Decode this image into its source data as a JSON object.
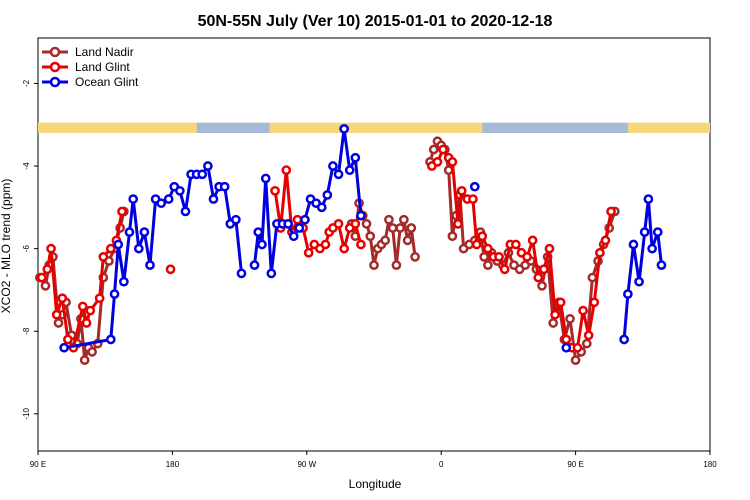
{
  "chart_data": {
    "type": "line",
    "title": "50N-55N July (Ver 10)   2015-01-01 to 2020-12-18",
    "xlabel": "Longitude",
    "ylabel": "XCO2 - MLO trend (ppm)",
    "xlim": [
      -90,
      270
    ],
    "ylim": [
      -10.9,
      -0.9
    ],
    "x_ticks": [
      {
        "value": -90,
        "label": "90 E"
      },
      {
        "value": -18,
        "label": "180"
      },
      {
        "value": 54,
        "label": "90 W"
      },
      {
        "value": 126,
        "label": "0"
      },
      {
        "value": 198,
        "label": "90 E"
      },
      {
        "value": 270,
        "label": "180"
      }
    ],
    "y_ticks": [
      {
        "value": -2,
        "label": "-2"
      },
      {
        "value": -4,
        "label": "-4"
      },
      {
        "value": -6,
        "label": "-6"
      },
      {
        "value": -8,
        "label": "-8"
      },
      {
        "value": -10,
        "label": "-10"
      }
    ],
    "legend_position": "top-left",
    "grid": false,
    "land_mask_band": {
      "y_range": [
        -3.2,
        -2.95
      ],
      "land_color": "#f8d77a",
      "ocean_color": "#a5bad8"
    },
    "series": [
      {
        "name": "Land Nadir",
        "color": "#a52a2a",
        "segments": [
          [
            [
              -89,
              -6.7
            ],
            [
              -86,
              -6.9
            ],
            [
              -84,
              -6.4
            ],
            [
              -82,
              -6.2
            ],
            [
              -79,
              -7.8
            ],
            [
              -77,
              -7.6
            ],
            [
              -75,
              -7.3
            ],
            [
              -72,
              -8.1
            ],
            [
              -69,
              -8.3
            ],
            [
              -67,
              -7.7
            ],
            [
              -65,
              -8.7
            ],
            [
              -63,
              -8.4
            ],
            [
              -61,
              -8.5
            ],
            [
              -58,
              -8.3
            ],
            [
              -55,
              -6.7
            ],
            [
              -52,
              -6.3
            ],
            [
              -49,
              -6.0
            ],
            [
              -46,
              -5.5
            ],
            [
              -44,
              -5.1
            ]
          ],
          [
            [
              78,
              -5.4
            ],
            [
              80,
              -5.7
            ],
            [
              82,
              -4.9
            ],
            [
              84,
              -5.2
            ],
            [
              86,
              -5.4
            ],
            [
              88,
              -5.7
            ],
            [
              90,
              -6.4
            ],
            [
              92,
              -6.0
            ],
            [
              94,
              -5.9
            ],
            [
              96,
              -5.8
            ],
            [
              98,
              -5.3
            ],
            [
              100,
              -5.5
            ],
            [
              102,
              -6.4
            ],
            [
              104,
              -5.5
            ],
            [
              106,
              -5.3
            ],
            [
              108,
              -5.8
            ],
            [
              110,
              -5.5
            ],
            [
              112,
              -6.2
            ]
          ],
          [
            [
              120,
              -3.9
            ],
            [
              122,
              -3.6
            ],
            [
              124,
              -3.4
            ],
            [
              126,
              -3.5
            ],
            [
              128,
              -3.6
            ],
            [
              130,
              -4.1
            ],
            [
              132,
              -5.7
            ],
            [
              134,
              -5.2
            ],
            [
              136,
              -4.7
            ],
            [
              138,
              -6.0
            ],
            [
              141,
              -5.9
            ],
            [
              144,
              -5.8
            ],
            [
              147,
              -5.6
            ],
            [
              149,
              -6.2
            ],
            [
              151,
              -6.4
            ],
            [
              153,
              -6.1
            ],
            [
              156,
              -6.3
            ],
            [
              159,
              -6.4
            ],
            [
              162,
              -6.1
            ],
            [
              165,
              -6.4
            ],
            [
              168,
              -6.5
            ],
            [
              171,
              -6.4
            ],
            [
              174,
              -6.3
            ],
            [
              177,
              -6.5
            ],
            [
              180,
              -6.9
            ],
            [
              183,
              -6.2
            ],
            [
              186,
              -7.8
            ],
            [
              189,
              -7.3
            ],
            [
              192,
              -8.2
            ],
            [
              195,
              -7.7
            ],
            [
              198,
              -8.7
            ],
            [
              201,
              -8.5
            ],
            [
              204,
              -8.3
            ],
            [
              207,
              -6.7
            ],
            [
              210,
              -6.3
            ],
            [
              213,
              -5.9
            ],
            [
              216,
              -5.5
            ],
            [
              219,
              -5.1
            ]
          ]
        ]
      },
      {
        "name": "Land Glint",
        "color": "#e80000",
        "segments": [
          [
            [
              -88,
              -6.7
            ],
            [
              -85,
              -6.5
            ],
            [
              -83,
              -6.0
            ],
            [
              -80,
              -7.6
            ],
            [
              -77,
              -7.2
            ],
            [
              -74,
              -8.2
            ],
            [
              -71,
              -8.4
            ],
            [
              -66,
              -7.4
            ],
            [
              -64,
              -7.8
            ],
            [
              -62,
              -7.5
            ],
            [
              -57,
              -7.2
            ],
            [
              -55,
              -6.2
            ],
            [
              -51,
              -6.0
            ],
            [
              -48,
              -5.8
            ],
            [
              -45,
              -5.1
            ]
          ],
          [
            [
              -19,
              -6.5
            ]
          ],
          [
            [
              37,
              -4.6
            ],
            [
              40,
              -5.5
            ],
            [
              43,
              -4.1
            ],
            [
              46,
              -5.6
            ],
            [
              49,
              -5.3
            ],
            [
              52,
              -5.5
            ],
            [
              55,
              -6.1
            ],
            [
              58,
              -5.9
            ],
            [
              61,
              -6.0
            ],
            [
              64,
              -5.9
            ],
            [
              66,
              -5.6
            ],
            [
              68,
              -5.5
            ],
            [
              71,
              -5.4
            ],
            [
              74,
              -6.0
            ],
            [
              77,
              -5.5
            ],
            [
              80,
              -5.4
            ],
            [
              83,
              -5.9
            ]
          ],
          [
            [
              121,
              -4.0
            ],
            [
              124,
              -3.9
            ],
            [
              127,
              -3.6
            ],
            [
              130,
              -3.8
            ],
            [
              132,
              -3.9
            ],
            [
              135,
              -5.4
            ],
            [
              137,
              -4.6
            ],
            [
              140,
              -4.8
            ],
            [
              143,
              -4.8
            ],
            [
              145,
              -5.9
            ],
            [
              148,
              -5.7
            ],
            [
              151,
              -6.0
            ],
            [
              154,
              -6.2
            ],
            [
              157,
              -6.2
            ],
            [
              160,
              -6.5
            ],
            [
              163,
              -5.9
            ],
            [
              166,
              -5.9
            ],
            [
              169,
              -6.1
            ],
            [
              172,
              -6.2
            ],
            [
              175,
              -5.8
            ],
            [
              178,
              -6.7
            ],
            [
              181,
              -6.5
            ],
            [
              184,
              -6.0
            ],
            [
              187,
              -7.6
            ],
            [
              190,
              -7.3
            ],
            [
              193,
              -8.2
            ],
            [
              196,
              -8.4
            ],
            [
              199,
              -8.4
            ],
            [
              202,
              -7.5
            ],
            [
              205,
              -8.1
            ],
            [
              208,
              -7.3
            ],
            [
              211,
              -6.1
            ],
            [
              214,
              -5.8
            ],
            [
              217,
              -5.1
            ]
          ]
        ]
      },
      {
        "name": "Ocean Glint",
        "color": "#0000e0",
        "segments": [
          [
            [
              -76,
              -8.4
            ],
            [
              -51,
              -8.2
            ],
            [
              -49,
              -7.1
            ],
            [
              -47,
              -5.9
            ],
            [
              -44,
              -6.8
            ],
            [
              -41,
              -5.6
            ],
            [
              -39,
              -4.8
            ],
            [
              -36,
              -6.0
            ],
            [
              -33,
              -5.6
            ],
            [
              -30,
              -6.4
            ],
            [
              -27,
              -4.8
            ],
            [
              -24,
              -4.9
            ],
            [
              -20,
              -4.8
            ],
            [
              -17,
              -4.5
            ],
            [
              -14,
              -4.6
            ],
            [
              -11,
              -5.1
            ],
            [
              -8,
              -4.2
            ],
            [
              -5,
              -4.2
            ],
            [
              -2,
              -4.2
            ],
            [
              1,
              -4.0
            ],
            [
              4,
              -4.8
            ],
            [
              7,
              -4.5
            ],
            [
              10,
              -4.5
            ],
            [
              13,
              -5.4
            ],
            [
              16,
              -5.3
            ],
            [
              19,
              -6.6
            ]
          ],
          [
            [
              26,
              -6.4
            ],
            [
              28,
              -5.6
            ],
            [
              30,
              -5.9
            ],
            [
              32,
              -4.3
            ],
            [
              35,
              -6.6
            ],
            [
              38,
              -5.4
            ],
            [
              41,
              -5.4
            ],
            [
              44,
              -5.4
            ],
            [
              47,
              -5.7
            ],
            [
              50,
              -5.5
            ],
            [
              53,
              -5.3
            ],
            [
              56,
              -4.8
            ],
            [
              59,
              -4.9
            ],
            [
              62,
              -5.0
            ],
            [
              65,
              -4.7
            ],
            [
              68,
              -4.0
            ],
            [
              71,
              -4.2
            ],
            [
              74,
              -3.1
            ],
            [
              77,
              -4.1
            ],
            [
              80,
              -3.8
            ],
            [
              83,
              -5.2
            ]
          ],
          [
            [
              144,
              -4.5
            ]
          ],
          [
            [
              193,
              -8.4
            ]
          ],
          [
            [
              224,
              -8.2
            ],
            [
              226,
              -7.1
            ],
            [
              229,
              -5.9
            ],
            [
              232,
              -6.8
            ],
            [
              235,
              -5.6
            ],
            [
              237,
              -4.8
            ],
            [
              239,
              -6.0
            ],
            [
              242,
              -5.6
            ],
            [
              244,
              -6.4
            ]
          ]
        ]
      }
    ]
  }
}
